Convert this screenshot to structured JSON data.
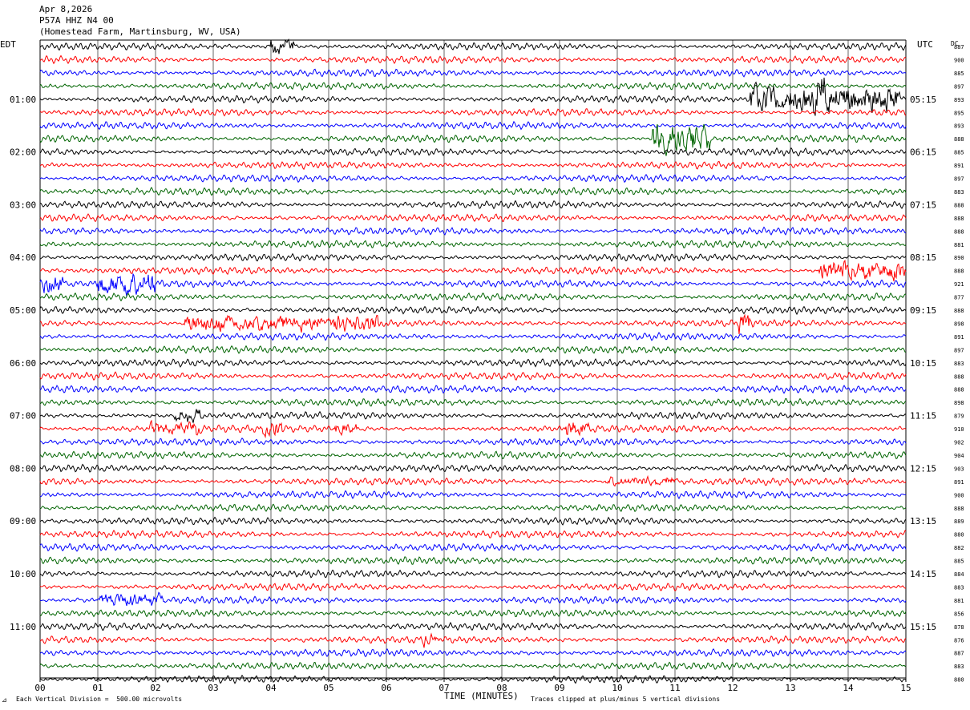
{
  "header": {
    "date": "Apr 8,2026",
    "station": "P57A HHZ N4 00",
    "location": "(Homestead Farm, Martinsburg, WV, USA)"
  },
  "labels": {
    "left_tz": "EDT",
    "right_tz": "UTC",
    "dc_header": "DC",
    "small_mark": "⊿"
  },
  "footer": {
    "scale_note": "Each Vertical Division =  500.00 microvolts",
    "clip_note": "Traces clipped at plus/minus 5 vertical divisions"
  },
  "chart_data": {
    "type": "line",
    "title": "",
    "xlabel": "TIME (MINUTES)",
    "ylabel": "",
    "xlim": [
      0,
      15
    ],
    "x_ticks": [
      "00",
      "01",
      "02",
      "03",
      "04",
      "05",
      "06",
      "07",
      "08",
      "09",
      "10",
      "11",
      "12",
      "13",
      "14",
      "15"
    ],
    "grid": "vertical lines every minute",
    "trace_colors": [
      "#000000",
      "#ff0000",
      "#0000ff",
      "#006400"
    ],
    "left_time_labels": [
      "01:00",
      "02:00",
      "03:00",
      "04:00",
      "05:00",
      "06:00",
      "07:00",
      "08:00",
      "09:00",
      "10:00",
      "11:00"
    ],
    "right_time_labels": [
      "05:15",
      "06:15",
      "07:15",
      "08:15",
      "09:15",
      "10:15",
      "11:15",
      "12:15",
      "13:15",
      "14:15",
      "15:15"
    ],
    "label_every_n_traces": 4,
    "label_first_trace_index": 4,
    "dc_offsets": [
      887,
      900,
      885,
      897,
      893,
      895,
      893,
      888,
      885,
      891,
      897,
      883,
      888,
      888,
      888,
      881,
      890,
      888,
      921,
      877,
      888,
      898,
      891,
      897,
      883,
      888,
      888,
      898,
      879,
      910,
      902,
      904,
      903,
      891,
      900,
      888,
      889,
      880,
      882,
      885,
      884,
      883,
      881,
      856,
      878,
      876,
      887,
      883,
      880
    ],
    "events": [
      {
        "trace": 0,
        "start_min": 4.0,
        "end_min": 4.4,
        "amp": 1.8
      },
      {
        "trace": 4,
        "start_min": 12.3,
        "end_min": 14.9,
        "amp": 3.0
      },
      {
        "trace": 4,
        "start_min": 13.3,
        "end_min": 13.6,
        "amp": 5.0
      },
      {
        "trace": 7,
        "start_min": 10.6,
        "end_min": 11.6,
        "amp": 3.5
      },
      {
        "trace": 17,
        "start_min": 13.5,
        "end_min": 15.0,
        "amp": 2.0
      },
      {
        "trace": 18,
        "start_min": 0.0,
        "end_min": 0.4,
        "amp": 2.0
      },
      {
        "trace": 18,
        "start_min": 1.0,
        "end_min": 2.0,
        "amp": 2.3
      },
      {
        "trace": 21,
        "start_min": 2.5,
        "end_min": 5.9,
        "amp": 1.6
      },
      {
        "trace": 21,
        "start_min": 12.1,
        "end_min": 12.3,
        "amp": 2.5
      },
      {
        "trace": 28,
        "start_min": 2.3,
        "end_min": 2.8,
        "amp": 1.5
      },
      {
        "trace": 29,
        "start_min": 1.9,
        "end_min": 2.8,
        "amp": 1.4
      },
      {
        "trace": 29,
        "start_min": 3.8,
        "end_min": 4.2,
        "amp": 1.6
      },
      {
        "trace": 29,
        "start_min": 5.1,
        "end_min": 5.5,
        "amp": 1.5
      },
      {
        "trace": 29,
        "start_min": 9.1,
        "end_min": 9.5,
        "amp": 1.4
      },
      {
        "trace": 33,
        "start_min": 9.8,
        "end_min": 11.0,
        "amp": 1.0
      },
      {
        "trace": 42,
        "start_min": 1.0,
        "end_min": 2.2,
        "amp": 1.2
      },
      {
        "trace": 45,
        "start_min": 6.6,
        "end_min": 6.9,
        "amp": 1.3
      }
    ]
  }
}
